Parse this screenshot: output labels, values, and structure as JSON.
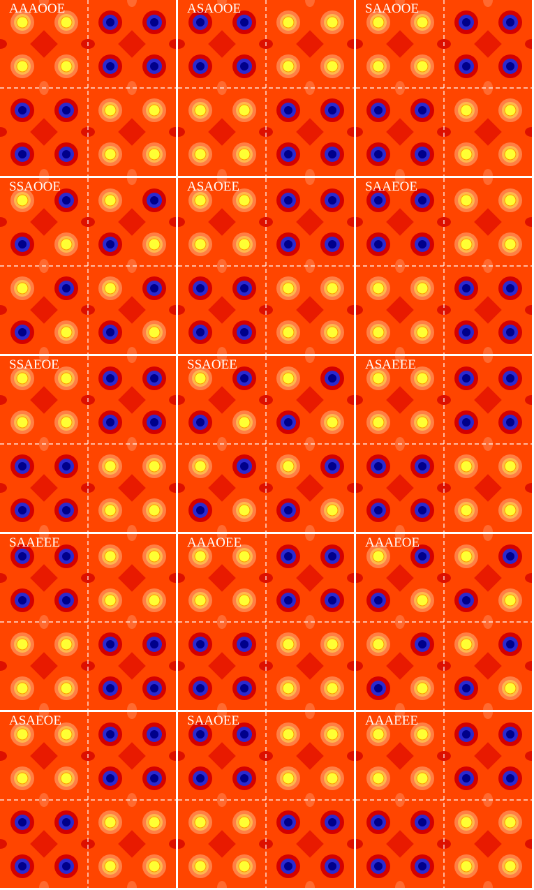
{
  "panels": [
    {
      "label": "AAAOOE"
    },
    {
      "label": "ASAOOE"
    },
    {
      "label": "SAAOOE"
    },
    {
      "label": "SSAOOE"
    },
    {
      "label": "ASAOEE"
    },
    {
      "label": "SAAEOE"
    },
    {
      "label": "SSAEOE"
    },
    {
      "label": "SSAOEE"
    },
    {
      "label": "ASAEEE"
    },
    {
      "label": "SAAEEE"
    },
    {
      "label": "AAAOEE"
    },
    {
      "label": "AAAEOE"
    },
    {
      "label": "ASAEOE"
    },
    {
      "label": "SAAOEE"
    },
    {
      "label": "AAAEEE"
    }
  ]
}
